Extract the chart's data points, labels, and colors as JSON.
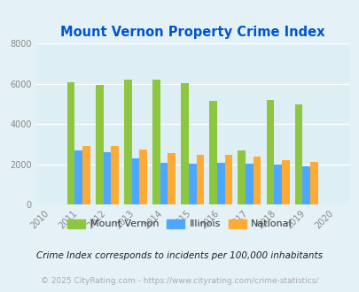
{
  "title": "Mount Vernon Property Crime Index",
  "years": [
    2010,
    2011,
    2012,
    2013,
    2014,
    2015,
    2016,
    2017,
    2018,
    2019,
    2020
  ],
  "bar_years": [
    2011,
    2012,
    2013,
    2014,
    2015,
    2016,
    2017,
    2018,
    2019
  ],
  "mount_vernon": [
    6080,
    5950,
    6230,
    6230,
    6050,
    5150,
    2700,
    5200,
    4980
  ],
  "illinois": [
    2680,
    2600,
    2280,
    2080,
    2030,
    2090,
    2030,
    1990,
    1880
  ],
  "national": [
    2900,
    2900,
    2720,
    2570,
    2480,
    2480,
    2380,
    2200,
    2130
  ],
  "color_mv": "#8dc63f",
  "color_il": "#4da6ff",
  "color_nat": "#ffaa33",
  "ylim": [
    0,
    8000
  ],
  "yticks": [
    0,
    2000,
    4000,
    6000,
    8000
  ],
  "background_color": "#e4f1f7",
  "plot_bg": "#ddeef5",
  "title_color": "#0055cc",
  "legend_labels": [
    "Mount Vernon",
    "Illinois",
    "National"
  ],
  "footnote1": "Crime Index corresponds to incidents per 100,000 inhabitants",
  "footnote2": "© 2025 CityRating.com - https://www.cityrating.com/crime-statistics/",
  "bar_width": 0.27,
  "xlim": [
    2009.5,
    2020.5
  ]
}
